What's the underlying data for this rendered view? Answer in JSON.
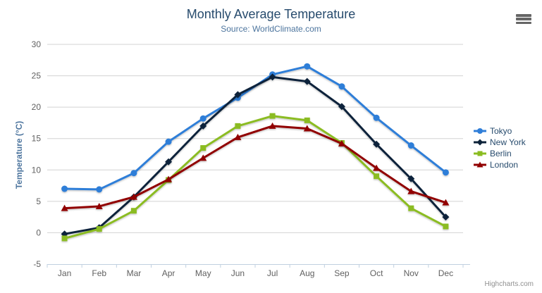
{
  "header": {
    "title": "Monthly Average Temperature",
    "subtitle": "Source: WorldClimate.com"
  },
  "credits": "Highcharts.com",
  "icons": {
    "export_menu": "hamburger-icon"
  },
  "colors": {
    "title": "#274b6d",
    "subtitle": "#4d759e",
    "axis_label": "#606060",
    "axis_title": "#4d759e",
    "grid_line": "#d3d3d3",
    "axis_line": "#c0d0e0",
    "legend_text": "#274b6d",
    "credits_text": "#909090"
  },
  "chart_data": {
    "type": "line",
    "title": "Monthly Average Temperature",
    "subtitle": "Source: WorldClimate.com",
    "xlabel": "",
    "ylabel": "Temperature (°C)",
    "ylim": [
      -5,
      30
    ],
    "ytick_step": 5,
    "grid": true,
    "legend_position": "right",
    "categories": [
      "Jan",
      "Feb",
      "Mar",
      "Apr",
      "May",
      "Jun",
      "Jul",
      "Aug",
      "Sep",
      "Oct",
      "Nov",
      "Dec"
    ],
    "yticks": [
      -5,
      0,
      5,
      10,
      15,
      20,
      25,
      30
    ],
    "series": [
      {
        "name": "Tokyo",
        "color": "#2f7ed8",
        "marker": "circle",
        "values": [
          7.0,
          6.9,
          9.5,
          14.5,
          18.2,
          21.5,
          25.2,
          26.5,
          23.3,
          18.3,
          13.9,
          9.6
        ]
      },
      {
        "name": "New York",
        "color": "#0d233a",
        "marker": "diamond",
        "values": [
          -0.2,
          0.8,
          5.7,
          11.3,
          17.0,
          22.0,
          24.8,
          24.1,
          20.1,
          14.1,
          8.6,
          2.5
        ]
      },
      {
        "name": "Berlin",
        "color": "#8bbc21",
        "marker": "square",
        "values": [
          -0.9,
          0.6,
          3.5,
          8.4,
          13.5,
          17.0,
          18.6,
          17.9,
          14.3,
          9.0,
          3.9,
          1.0
        ]
      },
      {
        "name": "London",
        "color": "#910000",
        "marker": "triangle",
        "values": [
          3.9,
          4.2,
          5.7,
          8.5,
          11.9,
          15.2,
          17.0,
          16.6,
          14.2,
          10.3,
          6.6,
          4.8
        ]
      }
    ]
  }
}
